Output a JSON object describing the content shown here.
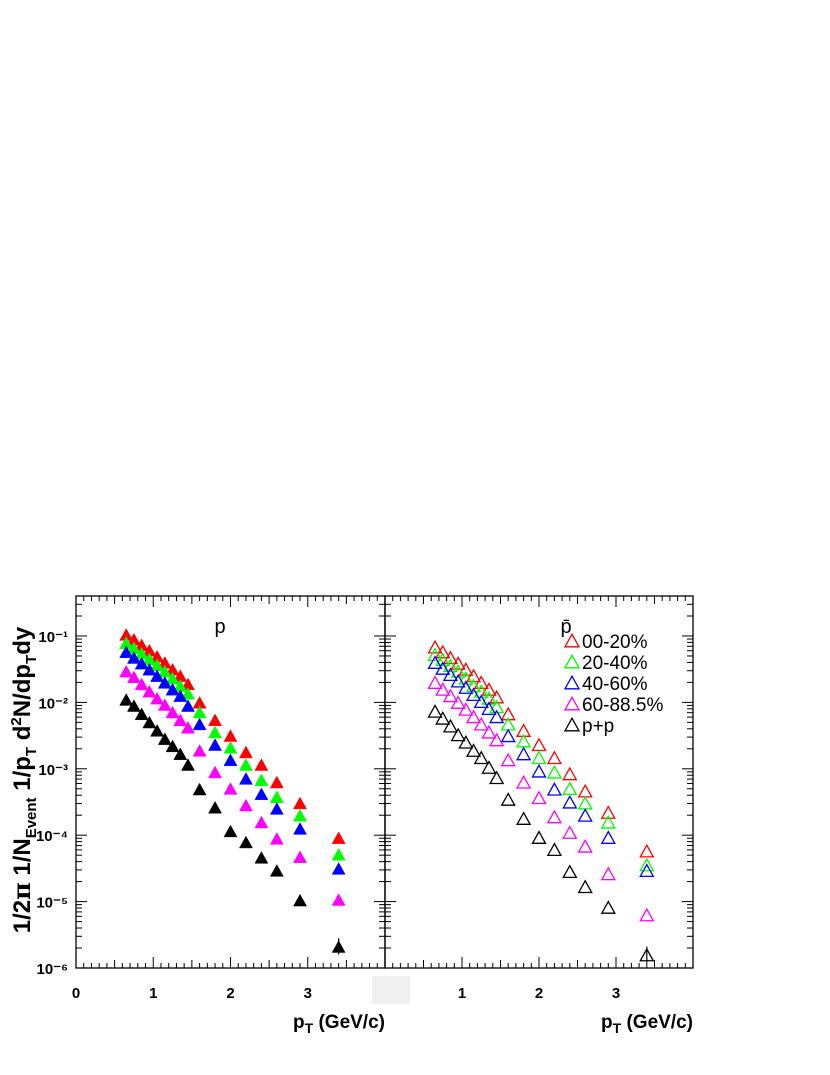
{
  "chart_data": {
    "type": "scatter",
    "ylabel": "1/2π 1/N_Event 1/p_T d²N/dp_Tdy",
    "y_log": true,
    "ylim": [
      1e-06,
      0.4
    ],
    "ytick_labels": [
      "10⁻⁶",
      "10⁻⁵",
      "10⁻⁴",
      "10⁻³",
      "10⁻²",
      "10⁻¹"
    ],
    "panels": [
      {
        "label": "p",
        "xlabel": "p_T (GeV/c)",
        "xlim": [
          0,
          4
        ],
        "xtick_labels": [
          "0",
          "1",
          "2",
          "3"
        ],
        "marker": "filled-triangle",
        "x": [
          0.65,
          0.75,
          0.85,
          0.95,
          1.05,
          1.15,
          1.25,
          1.35,
          1.45,
          1.6,
          1.8,
          2.0,
          2.2,
          2.4,
          2.6,
          2.9,
          3.4
        ],
        "series": [
          {
            "legend": "00-20%",
            "color": "#ff0000",
            "values": [
              0.1,
              0.085,
              0.07,
              0.058,
              0.047,
              0.038,
              0.03,
              0.024,
              0.018,
              0.0095,
              0.0052,
              0.003,
              0.0017,
              0.0011,
              0.0006,
              0.00029,
              8.7e-05
            ]
          },
          {
            "legend": "20-40%",
            "color": "#00ff00",
            "values": [
              0.075,
              0.063,
              0.052,
              0.043,
              0.035,
              0.028,
              0.022,
              0.017,
              0.013,
              0.0068,
              0.0034,
              0.002,
              0.0011,
              0.00065,
              0.00036,
              0.00019,
              4.9e-05
            ]
          },
          {
            "legend": "40-60%",
            "color": "#0000ff",
            "values": [
              0.055,
              0.045,
              0.037,
              0.03,
              0.024,
              0.019,
              0.015,
              0.012,
              0.0085,
              0.0045,
              0.0022,
              0.0013,
              0.00068,
              0.0004,
              0.00024,
              0.00012,
              3e-05
            ]
          },
          {
            "legend": "60-88.5%",
            "color": "#ff00ff",
            "values": [
              0.028,
              0.023,
              0.018,
              0.014,
              0.011,
              0.0088,
              0.0068,
              0.0052,
              0.004,
              0.0018,
              0.00085,
              0.00048,
              0.00027,
              0.00015,
              8.5e-05,
              4.5e-05,
              1.02e-05
            ]
          },
          {
            "legend": "p+p",
            "color": "#000000",
            "values": [
              0.0105,
              0.0085,
              0.0064,
              0.0048,
              0.0036,
              0.0027,
              0.0021,
              0.0016,
              0.0011,
              0.00047,
              0.00025,
              0.00011,
              7.5e-05,
              4.4e-05,
              2.8e-05,
              1e-05,
              2e-06
            ]
          }
        ]
      },
      {
        "label": "p̄",
        "xlabel": "p_T (GeV/c)",
        "xlim": [
          0,
          4
        ],
        "xtick_labels": [
          "",
          "1",
          "2",
          "3"
        ],
        "marker": "open-triangle",
        "x": [
          0.65,
          0.75,
          0.85,
          0.95,
          1.05,
          1.15,
          1.25,
          1.35,
          1.45,
          1.6,
          1.8,
          2.0,
          2.2,
          2.4,
          2.6,
          2.9,
          3.4
        ],
        "series": [
          {
            "legend": "00-20%",
            "color": "#ff0000",
            "values": [
              0.065,
              0.055,
              0.045,
              0.037,
              0.03,
              0.024,
              0.019,
              0.015,
              0.0115,
              0.0064,
              0.0036,
              0.0022,
              0.0014,
              0.0008,
              0.00044,
              0.00021,
              5.5e-05
            ]
          },
          {
            "legend": "20-40%",
            "color": "#00ff00",
            "values": [
              0.05,
              0.042,
              0.034,
              0.028,
              0.022,
              0.017,
              0.014,
              0.011,
              0.0082,
              0.0045,
              0.0025,
              0.0014,
              0.00085,
              0.00048,
              0.00029,
              0.00015,
              3.4e-05
            ]
          },
          {
            "legend": "40-60%",
            "color": "#0000ff",
            "values": [
              0.038,
              0.031,
              0.025,
              0.02,
              0.016,
              0.0125,
              0.0098,
              0.0077,
              0.0058,
              0.003,
              0.0016,
              0.00088,
              0.00047,
              0.0003,
              0.00019,
              8.8e-05,
              2.8e-05
            ]
          },
          {
            "legend": "60-88.5%",
            "color": "#ff00ff",
            "values": [
              0.019,
              0.015,
              0.012,
              0.0095,
              0.0075,
              0.0058,
              0.0045,
              0.0034,
              0.0026,
              0.0013,
              0.0006,
              0.00035,
              0.00018,
              0.000105,
              6.5e-05,
              2.5e-05,
              6e-06
            ]
          },
          {
            "legend": "p+p",
            "color": "#000000",
            "values": [
              0.007,
              0.0055,
              0.0042,
              0.0031,
              0.0024,
              0.0018,
              0.0014,
              0.001,
              0.0007,
              0.00033,
              0.00017,
              8.8e-05,
              5.8e-05,
              2.7e-05,
              1.6e-05,
              7.8e-06,
              1.5e-06
            ]
          }
        ]
      }
    ],
    "legend": {
      "placement": "top-right of right panel",
      "entries": [
        "00-20%",
        "20-40%",
        "40-60%",
        "60-88.5%",
        "p+p"
      ]
    }
  }
}
